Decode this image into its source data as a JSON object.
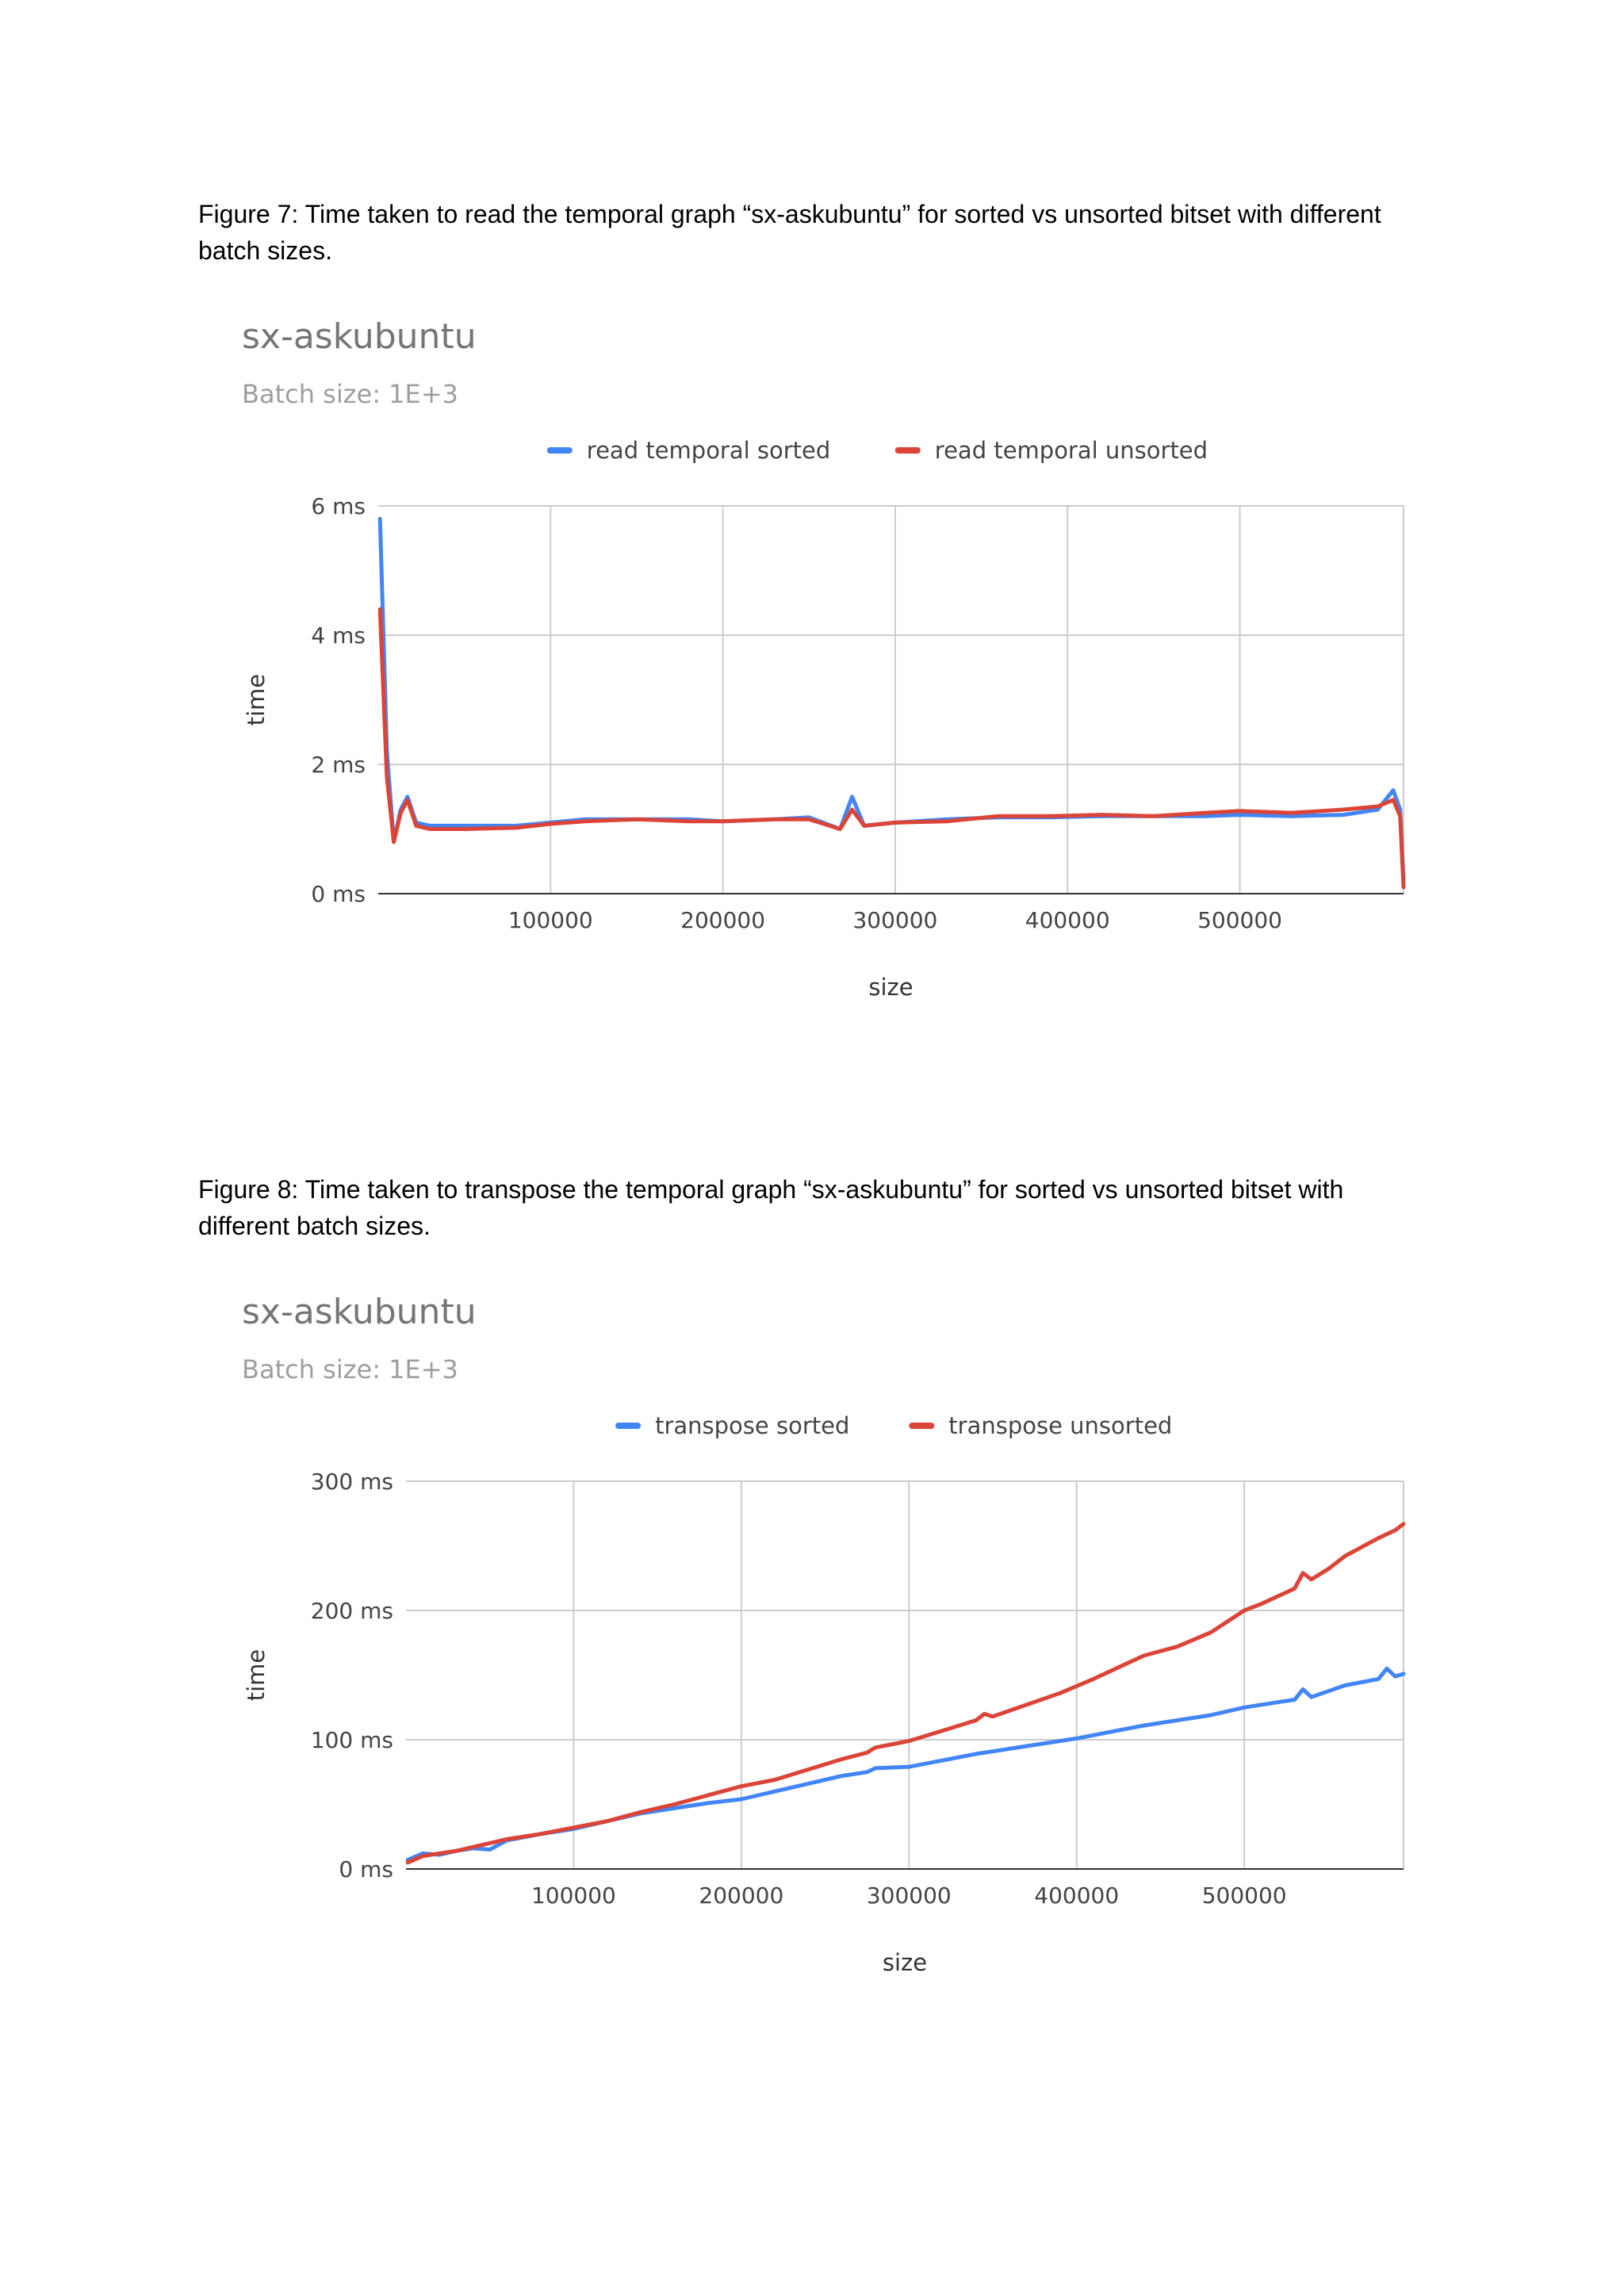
{
  "captions": {
    "figure7": "Figure 7: Time taken to read the temporal graph “sx-askubuntu” for sorted vs unsorted bitset with different batch sizes.",
    "figure8": "Figure 8: Time taken to transpose the temporal graph “sx-askubuntu” for sorted vs unsorted bitset with different batch sizes."
  },
  "colors": {
    "sorted": "#4285f4",
    "unsorted": "#db4437"
  },
  "chart_data": [
    {
      "type": "line",
      "title": "sx-askubuntu",
      "subtitle": "Batch size: 1E+3",
      "xlabel": "size",
      "ylabel": "time",
      "xlim": [
        0,
        595000
      ],
      "ylim": [
        0,
        6
      ],
      "xticks": [
        100000,
        200000,
        300000,
        400000,
        500000
      ],
      "yticks": [
        0,
        2,
        4,
        6
      ],
      "ytick_labels": [
        "0 ms",
        "2 ms",
        "4 ms",
        "6 ms"
      ],
      "grid": true,
      "legend_position": "top",
      "series": [
        {
          "name": "read temporal sorted",
          "color": "#4285f4",
          "x": [
            1000,
            5000,
            9000,
            13000,
            17000,
            22000,
            30000,
            50000,
            80000,
            100000,
            120000,
            150000,
            180000,
            200000,
            230000,
            250000,
            268000,
            275000,
            282000,
            300000,
            330000,
            360000,
            390000,
            420000,
            450000,
            480000,
            500000,
            530000,
            560000,
            580000,
            589000,
            593000,
            595000
          ],
          "values": [
            5.8,
            2.2,
            0.8,
            1.3,
            1.5,
            1.1,
            1.05,
            1.05,
            1.05,
            1.1,
            1.15,
            1.15,
            1.15,
            1.12,
            1.15,
            1.18,
            1.0,
            1.5,
            1.05,
            1.1,
            1.15,
            1.18,
            1.18,
            1.2,
            1.2,
            1.2,
            1.22,
            1.2,
            1.22,
            1.3,
            1.6,
            1.3,
            0.2
          ]
        },
        {
          "name": "read temporal unsorted",
          "color": "#db4437",
          "x": [
            1000,
            5000,
            9000,
            13000,
            17000,
            22000,
            30000,
            50000,
            80000,
            100000,
            120000,
            150000,
            180000,
            200000,
            230000,
            250000,
            268000,
            275000,
            282000,
            300000,
            330000,
            360000,
            390000,
            420000,
            450000,
            480000,
            500000,
            530000,
            560000,
            580000,
            589000,
            593000,
            595000
          ],
          "values": [
            4.4,
            1.8,
            0.8,
            1.25,
            1.45,
            1.05,
            1.0,
            1.0,
            1.02,
            1.08,
            1.12,
            1.15,
            1.12,
            1.12,
            1.15,
            1.15,
            1.0,
            1.3,
            1.05,
            1.1,
            1.12,
            1.2,
            1.2,
            1.22,
            1.2,
            1.25,
            1.28,
            1.25,
            1.3,
            1.35,
            1.45,
            1.2,
            0.1
          ]
        }
      ]
    },
    {
      "type": "line",
      "title": "sx-askubuntu",
      "subtitle": "Batch size: 1E+3",
      "xlabel": "size",
      "ylabel": "time",
      "xlim": [
        0,
        595000
      ],
      "ylim": [
        0,
        300
      ],
      "xticks": [
        100000,
        200000,
        300000,
        400000,
        500000
      ],
      "yticks": [
        0,
        100,
        200,
        300
      ],
      "ytick_labels": [
        "0 ms",
        "100 ms",
        "200 ms",
        "300 ms"
      ],
      "grid": true,
      "legend_position": "top",
      "series": [
        {
          "name": "transpose sorted",
          "color": "#4285f4",
          "x": [
            1000,
            10000,
            20000,
            30000,
            40000,
            50000,
            60000,
            80000,
            100000,
            120000,
            140000,
            160000,
            180000,
            200000,
            220000,
            240000,
            260000,
            275000,
            280000,
            300000,
            320000,
            340000,
            360000,
            380000,
            400000,
            420000,
            440000,
            460000,
            480000,
            500000,
            520000,
            530000,
            535000,
            540000,
            560000,
            580000,
            585000,
            590000,
            595000
          ],
          "values": [
            7,
            12,
            11,
            14,
            16,
            15,
            22,
            27,
            31,
            37,
            43,
            47,
            51,
            54,
            60,
            66,
            72,
            75,
            78,
            79,
            84,
            89,
            93,
            97,
            101,
            106,
            111,
            115,
            119,
            125,
            129,
            131,
            139,
            133,
            142,
            147,
            155,
            149,
            151
          ]
        },
        {
          "name": "transpose unsorted",
          "color": "#db4437",
          "x": [
            1000,
            10000,
            20000,
            30000,
            40000,
            50000,
            60000,
            80000,
            100000,
            120000,
            140000,
            160000,
            180000,
            200000,
            220000,
            240000,
            260000,
            275000,
            280000,
            300000,
            320000,
            340000,
            345000,
            350000,
            370000,
            390000,
            410000,
            430000,
            440000,
            460000,
            480000,
            500000,
            510000,
            520000,
            530000,
            535000,
            540000,
            550000,
            560000,
            580000,
            590000,
            595000
          ],
          "values": [
            5,
            10,
            12,
            14,
            17,
            20,
            23,
            27,
            32,
            37,
            44,
            50,
            57,
            64,
            69,
            77,
            85,
            90,
            94,
            99,
            107,
            115,
            120,
            118,
            127,
            136,
            147,
            159,
            165,
            172,
            183,
            200,
            205,
            211,
            217,
            229,
            224,
            232,
            242,
            256,
            262,
            267
          ]
        }
      ]
    }
  ]
}
